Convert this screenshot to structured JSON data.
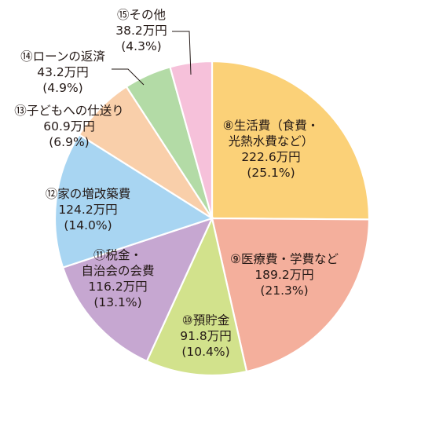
{
  "chart_data": {
    "type": "pie",
    "unit": "万円",
    "start": "12 o'clock, clockwise",
    "slices": [
      {
        "name": "⑧生活費（食費・光熱水費など）",
        "line1": "⑧生活費（食費・",
        "line2": "光熱水費など）",
        "value": 222.6,
        "value_text": "222.6万円",
        "percent_text": "(25.1%)",
        "color": "#FBD178"
      },
      {
        "name": "⑨医療費・学費など",
        "line1": "⑨医療費・学費など",
        "line2": "",
        "value": 189.2,
        "value_text": "189.2万円",
        "percent_text": "(21.3%)",
        "color": "#F4AF9C"
      },
      {
        "name": "⑩預貯金",
        "line1": "⑩預貯金",
        "line2": "",
        "value": 91.8,
        "value_text": "91.8万円",
        "percent_text": "(10.4%)",
        "color": "#D2E28C"
      },
      {
        "name": "⑪税金・自治会の会費",
        "line1": "⑪税金・",
        "line2": "自治会の会費",
        "value": 116.2,
        "value_text": "116.2万円",
        "percent_text": "(13.1%)",
        "color": "#C6A7D1"
      },
      {
        "name": "⑫家の増改築費",
        "line1": "⑫家の増改築費",
        "line2": "",
        "value": 124.2,
        "value_text": "124.2万円",
        "percent_text": "(14.0%)",
        "color": "#A8D5F2"
      },
      {
        "name": "⑬子どもへの仕送り",
        "line1": "⑬子どもへの仕送り",
        "line2": "",
        "value": 60.9,
        "value_text": "60.9万円",
        "percent_text": "(6.9%)",
        "color": "#F9CFAA"
      },
      {
        "name": "⑭ローンの返済",
        "line1": "⑭ローンの返済",
        "line2": "",
        "value": 43.2,
        "value_text": "43.2万円",
        "percent_text": "(4.9%)",
        "color": "#B3DBA6"
      },
      {
        "name": "⑮その他",
        "line1": "⑮その他",
        "line2": "",
        "value": 38.2,
        "value_text": "38.2万円",
        "percent_text": "(4.3%)",
        "color": "#F6C1DA"
      }
    ]
  }
}
